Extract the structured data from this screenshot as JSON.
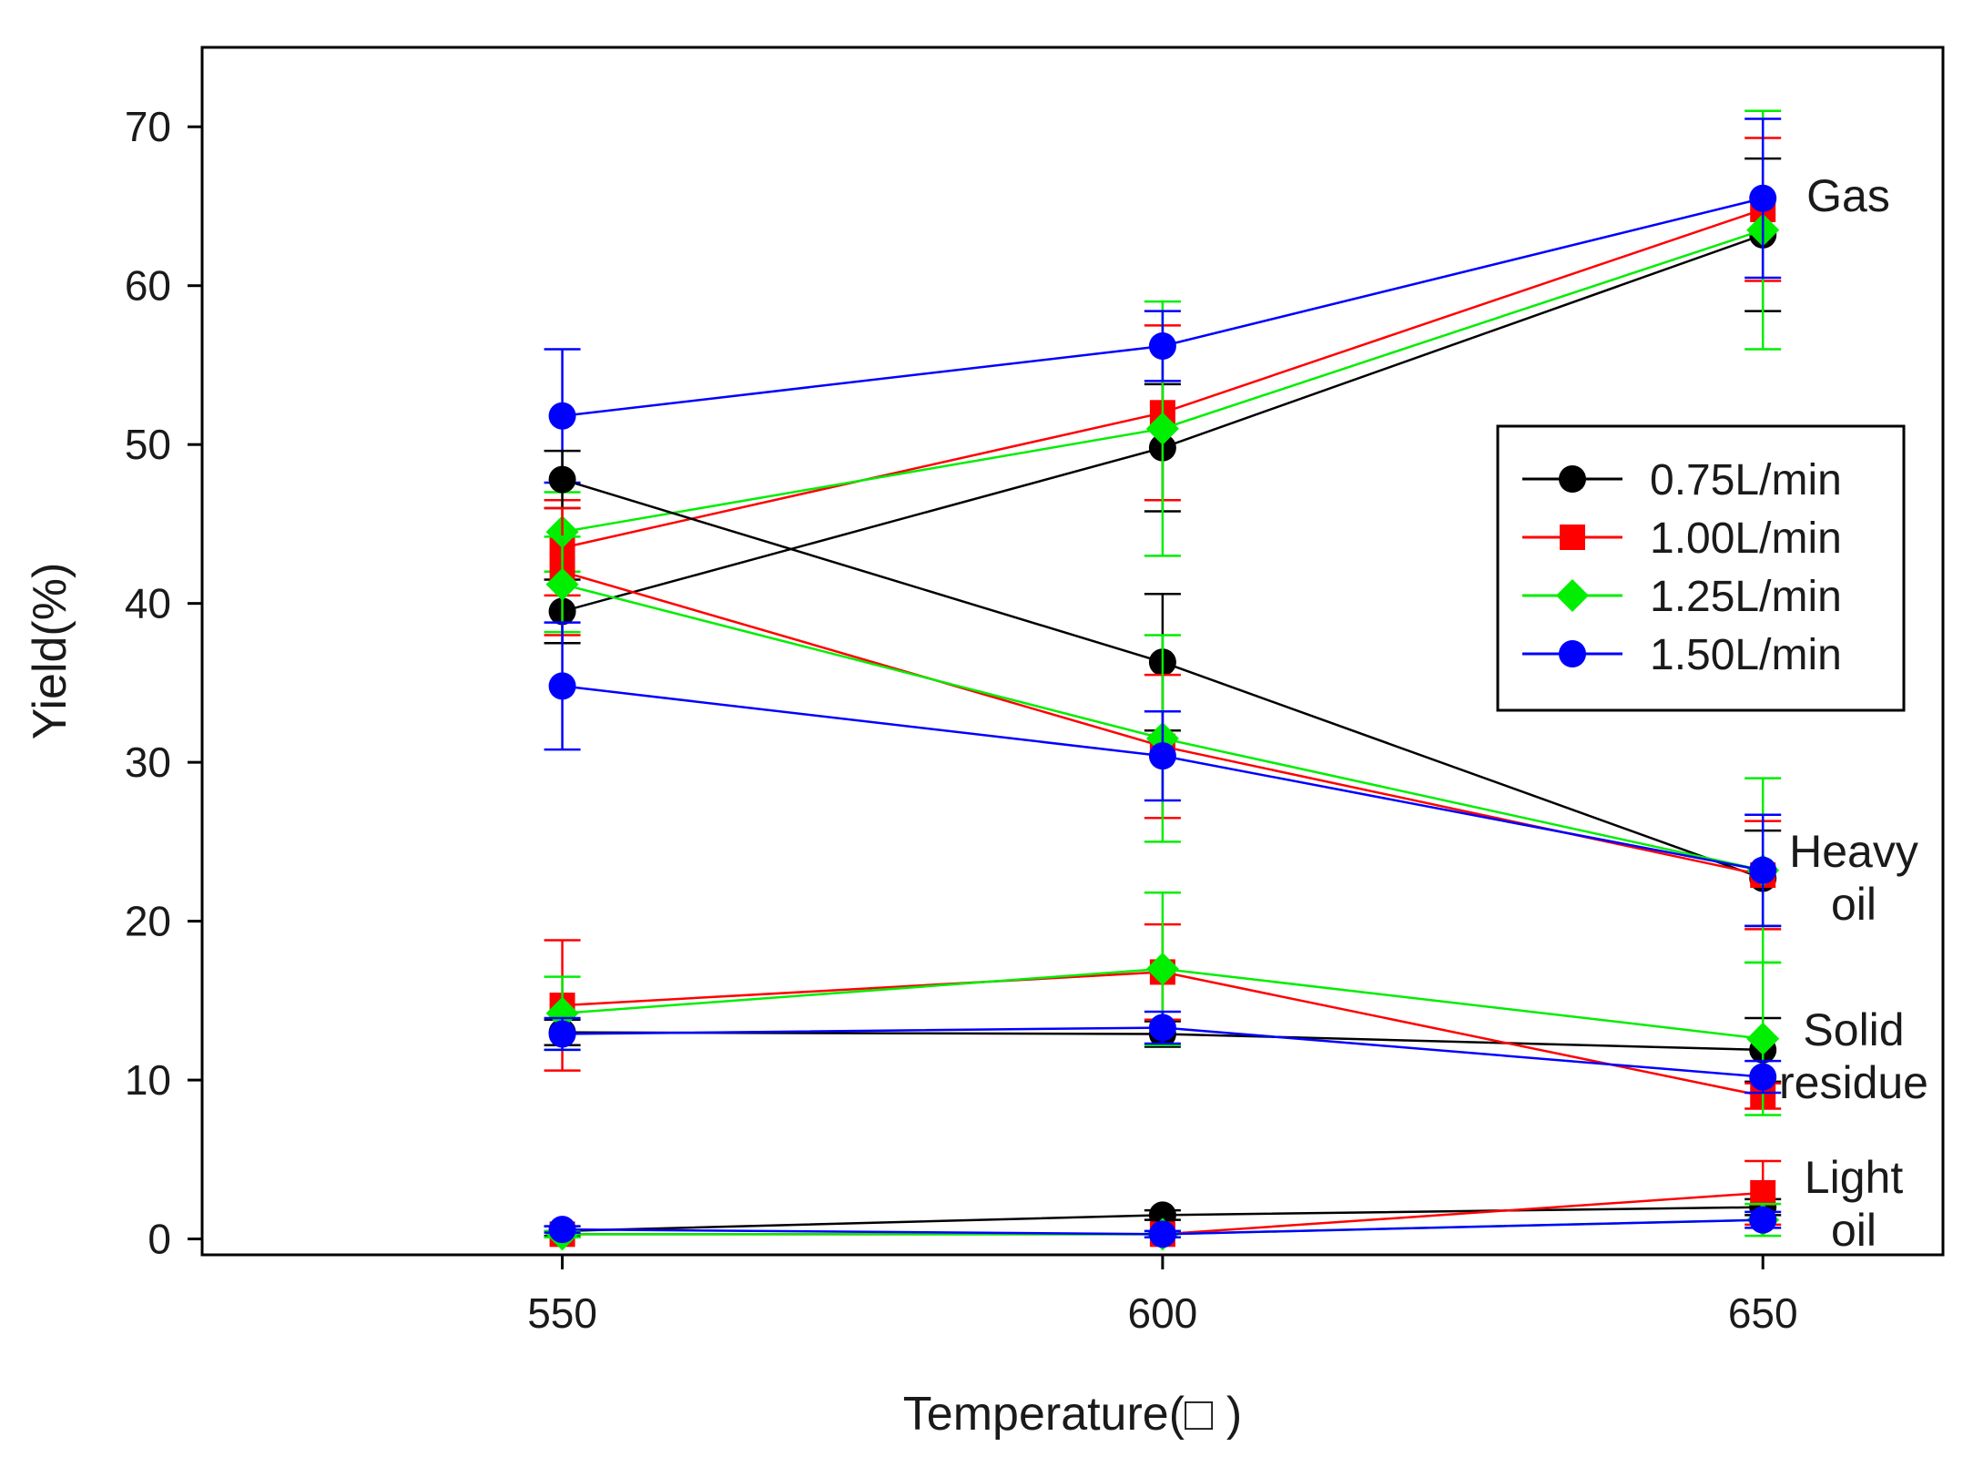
{
  "chart_data": {
    "type": "line",
    "xlabel": "Temperature(□ )",
    "ylabel": "Yield(%)",
    "x": [
      550,
      600,
      650
    ],
    "xlim": [
      520,
      665
    ],
    "ylim": [
      -1,
      75
    ],
    "xticks": [
      550,
      600,
      650
    ],
    "yticks": [
      0,
      10,
      20,
      30,
      40,
      50,
      60,
      70
    ],
    "grid": false,
    "legend_position": "right",
    "legend": [
      {
        "name": "0.75L/min",
        "color": "#000000",
        "marker": "circle"
      },
      {
        "name": "1.00L/min",
        "color": "#ff0000",
        "marker": "square"
      },
      {
        "name": "1.25L/min",
        "color": "#00ee00",
        "marker": "diamond"
      },
      {
        "name": "1.50L/min",
        "color": "#0000ff",
        "marker": "circle"
      }
    ],
    "annotations": [
      {
        "lines": [
          "Gas"
        ],
        "group": "gas"
      },
      {
        "lines": [
          "Heavy",
          "oil"
        ],
        "group": "heavy_oil"
      },
      {
        "lines": [
          "Solid",
          "residue"
        ],
        "group": "solid_residue"
      },
      {
        "lines": [
          "Light",
          "oil"
        ],
        "group": "light_oil"
      }
    ],
    "series": [
      {
        "group": "gas",
        "flow": "0.75L/min",
        "values": [
          39.5,
          49.8,
          63.2
        ],
        "err": [
          2.0,
          4.0,
          4.8
        ]
      },
      {
        "group": "gas",
        "flow": "1.00L/min",
        "values": [
          43.5,
          52.0,
          64.8
        ],
        "err": [
          3.0,
          5.5,
          4.5
        ]
      },
      {
        "group": "gas",
        "flow": "1.25L/min",
        "values": [
          44.5,
          51.0,
          63.5
        ],
        "err": [
          2.5,
          8.0,
          7.5
        ]
      },
      {
        "group": "gas",
        "flow": "1.50L/min",
        "values": [
          51.8,
          56.2,
          65.5
        ],
        "err": [
          4.2,
          2.2,
          5.0
        ]
      },
      {
        "group": "heavy_oil",
        "flow": "0.75L/min",
        "values": [
          47.8,
          36.3,
          22.7
        ],
        "err": [
          1.8,
          4.3,
          3.0
        ]
      },
      {
        "group": "heavy_oil",
        "flow": "1.00L/min",
        "values": [
          42.0,
          31.0,
          22.9
        ],
        "err": [
          4.0,
          4.5,
          3.4
        ]
      },
      {
        "group": "heavy_oil",
        "flow": "1.25L/min",
        "values": [
          41.2,
          31.5,
          23.2
        ],
        "err": [
          3.0,
          6.5,
          5.8
        ]
      },
      {
        "group": "heavy_oil",
        "flow": "1.50L/min",
        "values": [
          34.8,
          30.4,
          23.2
        ],
        "err": [
          4.0,
          2.8,
          3.5
        ]
      },
      {
        "group": "solid_residue",
        "flow": "0.75L/min",
        "values": [
          13.0,
          12.9,
          11.9
        ],
        "err": [
          0.8,
          0.8,
          2.0
        ]
      },
      {
        "group": "solid_residue",
        "flow": "1.00L/min",
        "values": [
          14.7,
          16.8,
          9.0
        ],
        "err": [
          4.1,
          3.0,
          0.8
        ]
      },
      {
        "group": "solid_residue",
        "flow": "1.25L/min",
        "values": [
          14.2,
          17.0,
          12.6
        ],
        "err": [
          2.3,
          4.8,
          4.8
        ]
      },
      {
        "group": "solid_residue",
        "flow": "1.50L/min",
        "values": [
          12.9,
          13.3,
          10.2
        ],
        "err": [
          1.0,
          1.0,
          1.0
        ]
      },
      {
        "group": "light_oil",
        "flow": "0.75L/min",
        "values": [
          0.5,
          1.5,
          2.0
        ],
        "err": [
          0.3,
          0.3,
          0.5
        ]
      },
      {
        "group": "light_oil",
        "flow": "1.00L/min",
        "values": [
          0.3,
          0.3,
          2.9
        ],
        "err": [
          0.2,
          0.2,
          2.0
        ]
      },
      {
        "group": "light_oil",
        "flow": "1.25L/min",
        "values": [
          0.3,
          0.3,
          1.2
        ],
        "err": [
          0.2,
          0.2,
          1.0
        ]
      },
      {
        "group": "light_oil",
        "flow": "1.50L/min",
        "values": [
          0.6,
          0.3,
          1.2
        ],
        "err": [
          0.2,
          0.2,
          0.5
        ]
      }
    ]
  }
}
